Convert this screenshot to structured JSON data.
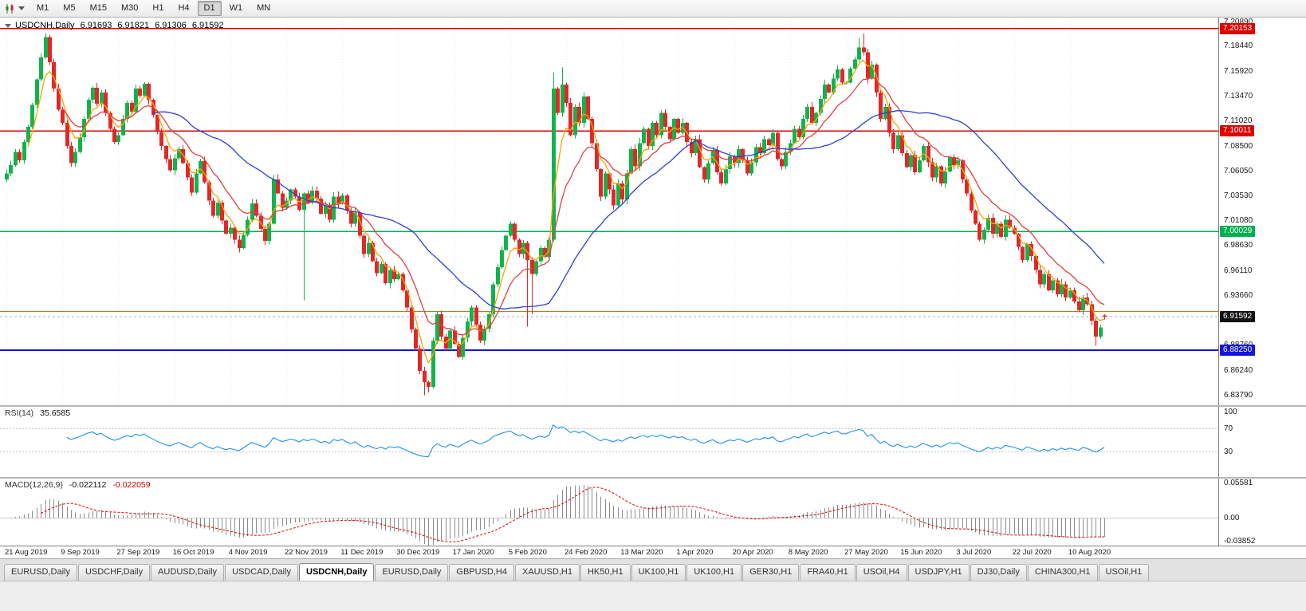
{
  "toolbar": {
    "timeframes": [
      "M1",
      "M5",
      "M15",
      "M30",
      "H1",
      "H4",
      "D1",
      "W1",
      "MN"
    ],
    "active": "D1"
  },
  "chart": {
    "title": {
      "symbol": "USDCNH,Daily",
      "open": "6.91693",
      "high": "6.91821",
      "low": "6.91306",
      "close": "6.91592"
    },
    "price_scale": [
      "7.20890",
      "7.18440",
      "7.15920",
      "7.13470",
      "7.11020",
      "7.08500",
      "7.06050",
      "7.03530",
      "7.01080",
      "6.98630",
      "6.96110",
      "6.93660",
      "6.91210",
      "6.88760",
      "6.86240",
      "6.83790"
    ],
    "hlines": [
      {
        "price": 7.20153,
        "label": "7.20153",
        "color": "#dd0000",
        "width": 1.6
      },
      {
        "price": 7.10011,
        "label": "7.10011",
        "color": "#dd0000",
        "width": 1.6
      },
      {
        "price": 7.00029,
        "label": "7.00029",
        "color": "#00b050",
        "width": 1.6
      },
      {
        "price": 6.921,
        "label": "",
        "color": "#c07828",
        "width": 1.2
      },
      {
        "price": 6.8825,
        "label": "6.88250",
        "color": "#1414dd",
        "width": 1.8
      }
    ],
    "bid": {
      "price": 6.91592,
      "label": "6.91592",
      "color": "#111111"
    }
  },
  "chart_data": {
    "type": "candlestick",
    "symbol": "USDCNH",
    "timeframe": "Daily",
    "ylim": [
      6.828,
      7.2125
    ],
    "grid_color": "#e8e8e8",
    "x_labels": [
      "21 Aug 2019",
      "9 Sep 2019",
      "27 Sep 2019",
      "16 Oct 2019",
      "4 Nov 2019",
      "22 Nov 2019",
      "11 Dec 2019",
      "30 Dec 2019",
      "17 Jan 2020",
      "5 Feb 2020",
      "24 Feb 2020",
      "13 Mar 2020",
      "1 Apr 2020",
      "20 Apr 2020",
      "8 May 2020",
      "27 May 2020",
      "15 Jun 2020",
      "3 Jul 2020",
      "22 Jul 2020",
      "10 Aug 2020"
    ],
    "label_step": 13,
    "closes": [
      7.058,
      7.066,
      7.079,
      7.071,
      7.089,
      7.104,
      7.126,
      7.151,
      7.173,
      7.193,
      7.168,
      7.142,
      7.121,
      7.108,
      7.085,
      7.068,
      7.079,
      7.094,
      7.112,
      7.131,
      7.143,
      7.127,
      7.138,
      7.118,
      7.102,
      7.089,
      7.096,
      7.112,
      7.128,
      7.119,
      7.142,
      7.135,
      7.147,
      7.131,
      7.116,
      7.099,
      7.085,
      7.072,
      7.061,
      7.073,
      7.082,
      7.068,
      7.054,
      7.039,
      7.058,
      7.07,
      7.049,
      7.031,
      7.016,
      7.029,
      7.011,
      6.998,
      7.004,
      6.992,
      6.984,
      6.997,
      7.012,
      7.028,
      7.016,
      7.003,
      6.991,
      7.008,
      7.052,
      7.038,
      7.024,
      7.031,
      7.042,
      7.035,
      7.022,
      7.038,
      7.029,
      7.041,
      7.033,
      7.018,
      7.026,
      7.012,
      7.035,
      7.028,
      7.036,
      7.021,
      7.008,
      7.019,
      6.996,
      6.978,
      6.989,
      6.971,
      6.959,
      6.968,
      6.949,
      6.962,
      6.953,
      6.958,
      6.942,
      6.925,
      6.903,
      6.884,
      6.862,
      6.851,
      6.846,
      6.892,
      6.918,
      6.896,
      6.884,
      6.902,
      6.889,
      6.876,
      6.895,
      6.911,
      6.925,
      6.908,
      6.892,
      6.904,
      6.918,
      6.948,
      6.965,
      6.982,
      6.996,
      7.008,
      6.992,
      6.978,
      6.989,
      6.972,
      6.958,
      6.971,
      6.984,
      6.975,
      6.992,
      7.142,
      7.118,
      7.146,
      7.128,
      7.096,
      7.124,
      7.108,
      7.134,
      7.112,
      7.088,
      7.062,
      7.035,
      7.058,
      7.042,
      7.026,
      7.048,
      7.032,
      7.058,
      7.082,
      7.065,
      7.088,
      7.102,
      7.085,
      7.108,
      7.096,
      7.118,
      7.104,
      7.092,
      7.112,
      7.098,
      7.108,
      7.089,
      7.078,
      7.092,
      7.064,
      7.052,
      7.068,
      7.081,
      7.059,
      7.048,
      7.062,
      7.075,
      7.068,
      7.082,
      7.071,
      7.058,
      7.069,
      7.084,
      7.078,
      7.092,
      7.086,
      7.098,
      7.072,
      7.065,
      7.079,
      7.088,
      7.102,
      7.094,
      7.112,
      7.124,
      7.108,
      7.118,
      7.132,
      7.146,
      7.138,
      7.152,
      7.161,
      7.148,
      7.148,
      7.162,
      7.171,
      7.183,
      7.178,
      7.152,
      7.166,
      7.138,
      7.112,
      7.124,
      7.098,
      7.082,
      7.096,
      7.078,
      7.064,
      7.076,
      7.059,
      7.071,
      7.085,
      7.069,
      7.054,
      7.065,
      7.048,
      7.06,
      7.074,
      7.066,
      7.071,
      7.052,
      7.038,
      7.021,
      7.008,
      6.992,
      7.002,
      7.014,
      6.998,
      7.008,
      6.995,
      7.012,
      7.004,
      6.998,
      6.985,
      6.972,
      6.988,
      6.976,
      6.962,
      6.948,
      6.958,
      6.942,
      6.952,
      6.938,
      6.948,
      6.935,
      6.942,
      6.931,
      6.922,
      6.935,
      6.928,
      6.912,
      6.896,
      6.905,
      6.916
    ],
    "overrides": {
      "9": {
        "h": 7.197
      },
      "69": {
        "l": 6.932
      },
      "97": {
        "l": 6.8379
      },
      "98": {
        "l": 6.8405
      },
      "121": {
        "l": 6.906
      },
      "122": {
        "l": 6.918
      },
      "127": {
        "h": 7.158
      },
      "129": {
        "h": 7.163
      },
      "198": {
        "h": 7.192
      },
      "199": {
        "h": 7.1965
      },
      "253": {
        "l": 6.887
      },
      "255": {
        "o": 6.91693,
        "h": 6.91821,
        "l": 6.91306,
        "c": 6.91592
      }
    },
    "colors": {
      "bull": "#14b24c",
      "bear": "#e02828"
    },
    "moving_averages": [
      {
        "type": "ema",
        "period": 5,
        "color": "#ffa200"
      },
      {
        "type": "ema",
        "period": 13,
        "color": "#e04040"
      },
      {
        "type": "sma",
        "period": 34,
        "color": "#2d3fd1"
      }
    ]
  },
  "rsi": {
    "name": "RSI(14)",
    "value": "35.6585",
    "color": "#1e90ff",
    "levels": [
      70,
      30
    ],
    "scale": [
      "100",
      "70",
      "30"
    ],
    "scale_values": [
      100,
      70,
      30
    ]
  },
  "macd": {
    "name": "MACD(12,26,9)",
    "value_main": "-0.022112",
    "value_signal": "-0.022059",
    "bar_color": "#8c8c8c",
    "signal_color": "#dd0000",
    "scale": [
      "0.05581",
      "0.00",
      "-0.03852"
    ],
    "scale_values": [
      0.05581,
      0,
      -0.03852
    ],
    "range_top": 0.058,
    "range_bottom": -0.0402
  },
  "tabs": {
    "items": [
      "EURUSD,Daily",
      "USDCHF,Daily",
      "AUDUSD,Daily",
      "USDCAD,Daily",
      "USDCNH,Daily",
      "EURUSD,Daily",
      "GBPUSD,H4",
      "XAUUSD,H1",
      "HK50,H1",
      "UK100,H1",
      "UK100,H1",
      "GER30,H1",
      "FRA40,H1",
      "USOil,H4",
      "USDJPY,H1",
      "DJ30,Daily",
      "CHINA300,H1",
      "USOil,H1"
    ],
    "active_index": 4
  }
}
